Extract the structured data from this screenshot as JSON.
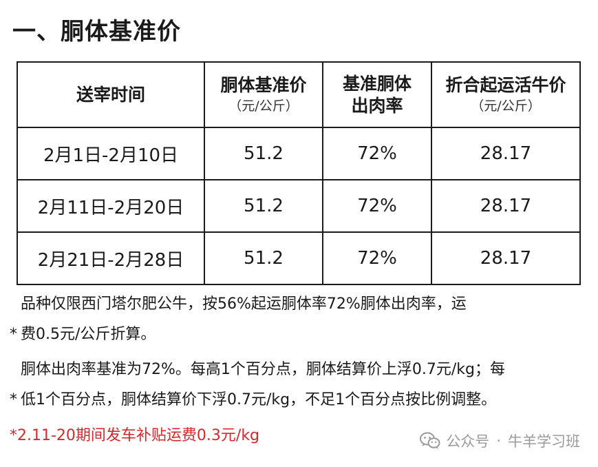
{
  "title": "一、胴体基准价",
  "table": {
    "headers": [
      {
        "main": "送宰时间",
        "unit": ""
      },
      {
        "main": "胴体基准价",
        "unit": "（元/公斤）"
      },
      {
        "main": "基准胴体\n出肉率",
        "unit": ""
      },
      {
        "main": "折合起运活牛价",
        "unit": "（元/公斤）"
      }
    ],
    "rows": [
      [
        "2月1日-2月10日",
        "51.2",
        "72%",
        "28.17"
      ],
      [
        "2月11日-2月20日",
        "51.2",
        "72%",
        "28.17"
      ],
      [
        "2月21日-2月28日",
        "51.2",
        "72%",
        "28.17"
      ]
    ]
  },
  "notes": {
    "note1_line1": "品种仅限西门塔尔肥公牛，按56%起运胴体率72%胴体出肉率，运",
    "note1_line2": "费0.5元/公斤折算。",
    "note2_line1": "胴体出肉率基准为72%。每高1个百分点，胴体结算价上浮0.7元/kg；每",
    "note2_line2": "低1个百分点，胴体结算价下浮0.7元/kg，不足1个百分点按比例调整。",
    "star": "*",
    "note3": "*2.11-20期间发车补贴运费0.3元/kg"
  },
  "watermark": {
    "account_type": "公众号",
    "separator": "·",
    "account_name": "牛羊学习班",
    "icon": "wechat-icon"
  },
  "colors": {
    "text": "#1a1a1a",
    "highlight": "#d9262b",
    "watermark": "#9a9a9a"
  }
}
